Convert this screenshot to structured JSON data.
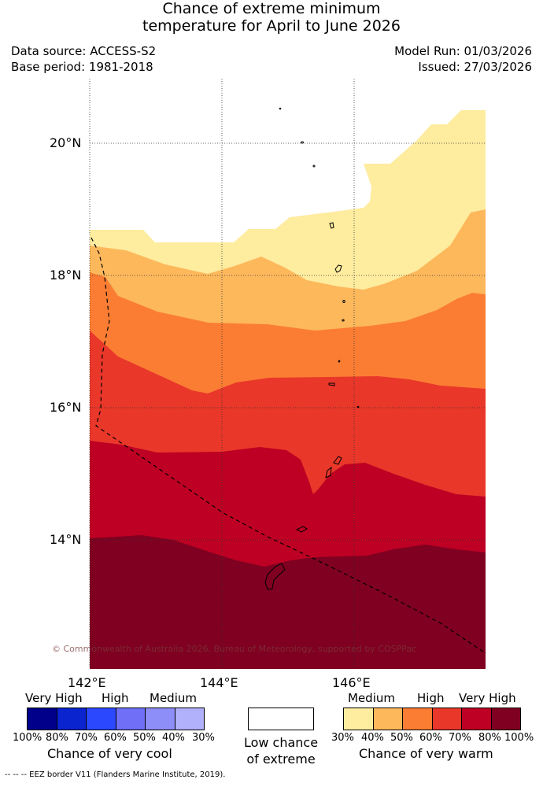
{
  "title_line1": "Chance of extreme minimum",
  "title_line2": "temperature for April to June 2026",
  "data_source": "Data source: ACCESS-S2",
  "base_period": "Base period: 1981-2018",
  "model_run": "Model Run: 01/03/2026",
  "issued": "Issued: 27/03/2026",
  "lat_labels": [
    "20°N",
    "18°N",
    "16°N",
    "14°N"
  ],
  "lon_labels": [
    "142°E",
    "144°E",
    "146°E"
  ],
  "copyright": "© Commonwealth of Australia 2026, Bureau of Meteorology, supported by COSPPac",
  "cool_legend": {
    "categories": [
      "Very High",
      "High",
      "Medium"
    ],
    "colors": [
      "#00008b",
      "#0a24cf",
      "#2b48ff",
      "#6f6ff8",
      "#8e8ef8",
      "#b0b0fb"
    ],
    "ticks": [
      "100%",
      "80%",
      "70%",
      "60%",
      "50%",
      "40%",
      "30%"
    ],
    "label": "Chance of very cool"
  },
  "neutral_legend": {
    "line1": "Low chance",
    "line2": "of extreme",
    "color": "#ffffff"
  },
  "warm_legend": {
    "categories": [
      "Medium",
      "High",
      "Very High"
    ],
    "colors": [
      "#feec9f",
      "#fdb85c",
      "#fb7d33",
      "#e9372a",
      "#bd0023",
      "#7f0021"
    ],
    "ticks": [
      "30%",
      "40%",
      "50%",
      "60%",
      "70%",
      "80%",
      "100%"
    ],
    "label": "Chance of very warm"
  },
  "eez_note": "-- -- -- EEZ border V11 (Flanders Marine Institute, 2019)."
}
